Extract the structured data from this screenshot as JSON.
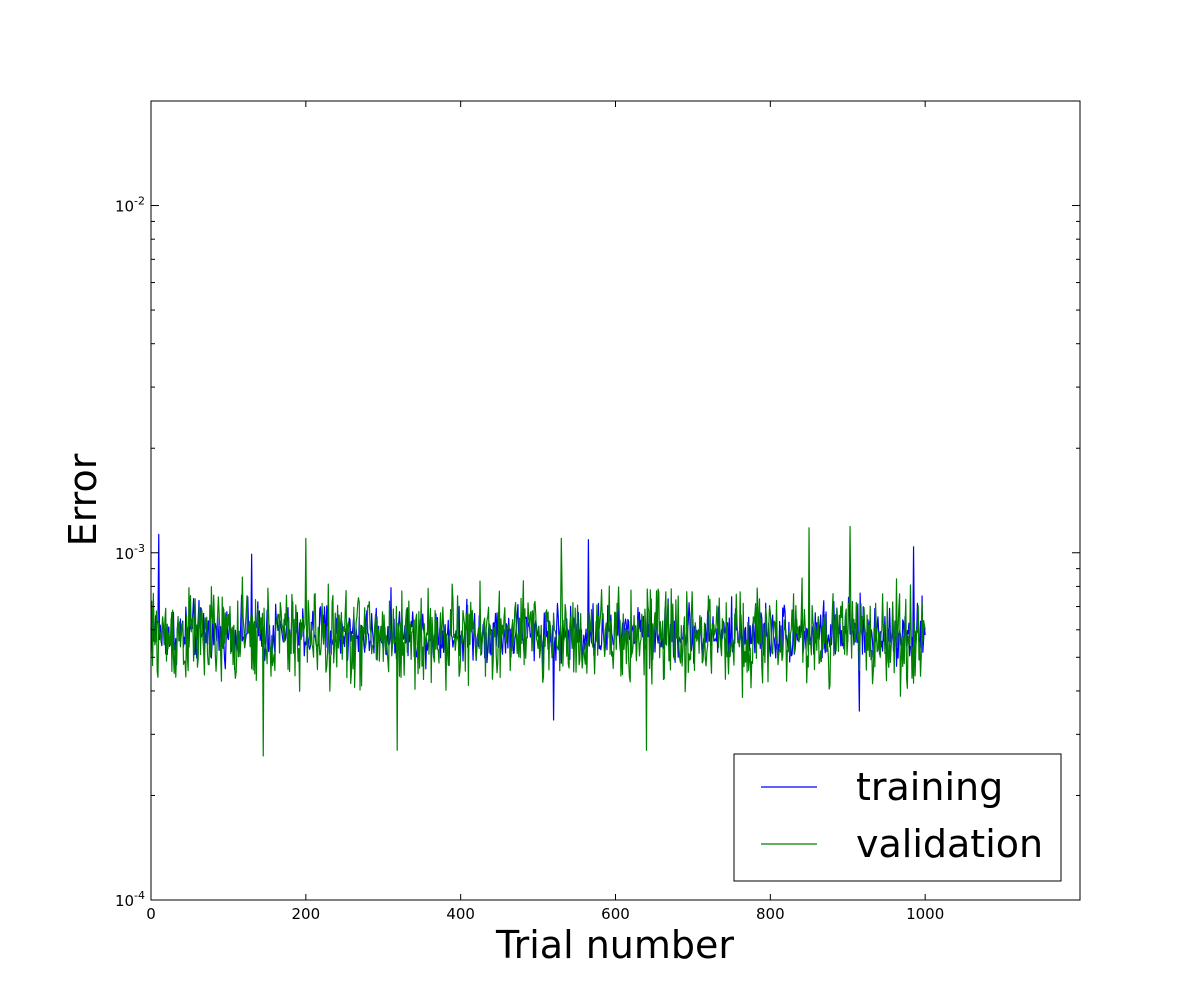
{
  "chart_data": {
    "type": "line",
    "title": "",
    "xlabel": "Trial number",
    "ylabel": "Error",
    "xlim": [
      0,
      1200
    ],
    "ylim": [
      0.0001,
      0.02
    ],
    "yscale": "log",
    "grid": false,
    "legend_position": "lower-right",
    "x_ticks": [
      0,
      200,
      400,
      600,
      800,
      1000
    ],
    "x_tick_labels": [
      "0",
      "200",
      "400",
      "600",
      "800",
      "1000"
    ],
    "y_ticks": [
      0.0001,
      0.001,
      0.01
    ],
    "y_tick_labels": [
      {
        "base": "10",
        "exp": "-4"
      },
      {
        "base": "10",
        "exp": "-3"
      },
      {
        "base": "10",
        "exp": "-2"
      }
    ],
    "series": [
      {
        "name": "training",
        "color": "#0000ff",
        "x_range": [
          0,
          1000
        ],
        "typical_range": [
          0.00045,
          0.0008
        ],
        "center": 0.00058,
        "points": [
          {
            "x": 10,
            "y": 0.00113
          },
          {
            "x": 130,
            "y": 0.00099
          },
          {
            "x": 565,
            "y": 0.00109
          },
          {
            "x": 520,
            "y": 0.00033
          },
          {
            "x": 915,
            "y": 0.00035
          },
          {
            "x": 985,
            "y": 0.00104
          },
          {
            "x": 1000,
            "y": 0.00058
          }
        ]
      },
      {
        "name": "validation",
        "color": "#008000",
        "x_range": [
          0,
          1000
        ],
        "typical_range": [
          0.00035,
          0.0009
        ],
        "center": 0.00058,
        "points": [
          {
            "x": 145,
            "y": 0.00026
          },
          {
            "x": 200,
            "y": 0.0011
          },
          {
            "x": 318,
            "y": 0.00027
          },
          {
            "x": 530,
            "y": 0.0011
          },
          {
            "x": 640,
            "y": 0.00027
          },
          {
            "x": 850,
            "y": 0.00118
          },
          {
            "x": 903,
            "y": 0.00119
          },
          {
            "x": 1000,
            "y": 0.0006
          }
        ]
      }
    ]
  }
}
